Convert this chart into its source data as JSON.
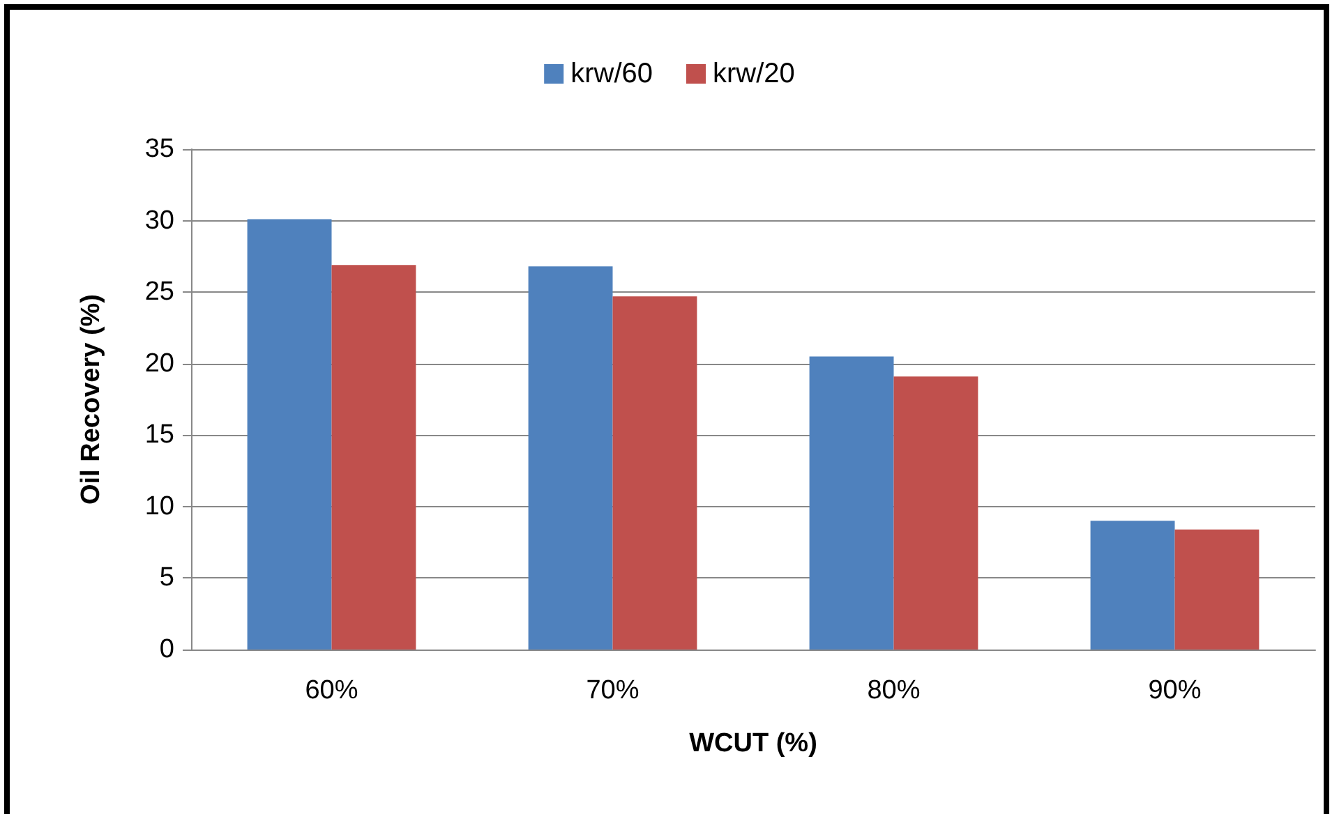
{
  "chart_data": {
    "type": "bar",
    "xlabel": "WCUT (%)",
    "ylabel": "Oil Recovery (%)",
    "categories": [
      "60%",
      "70%",
      "80%",
      "90%"
    ],
    "series": [
      {
        "name": "krw/60",
        "color": "#4f81bd",
        "values": [
          30.1,
          26.8,
          20.5,
          9.0
        ]
      },
      {
        "name": "krw/20",
        "color": "#c0504d",
        "values": [
          26.9,
          24.7,
          19.1,
          8.4
        ]
      }
    ],
    "ylim": [
      0,
      35
    ],
    "yticks": [
      0,
      5,
      10,
      15,
      20,
      25,
      30,
      35
    ],
    "grid": "y",
    "legend": "top"
  }
}
